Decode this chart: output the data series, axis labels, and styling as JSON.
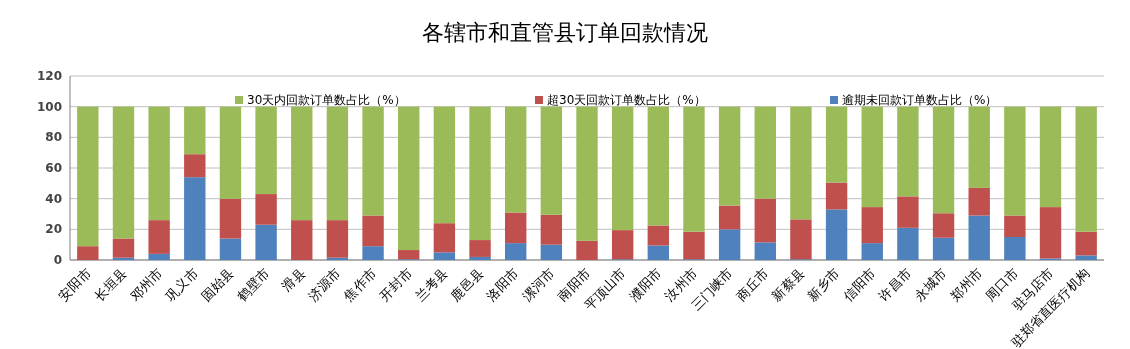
{
  "chart_data": {
    "type": "bar",
    "stacked": true,
    "title": "各辖市和直管县订单回款情况",
    "categories": [
      "安阳市",
      "长垣县",
      "邓州市",
      "巩义市",
      "固始县",
      "鹤壁市",
      "滑县",
      "济源市",
      "焦作市",
      "开封市",
      "兰考县",
      "鹿邑县",
      "洛阳市",
      "漯河市",
      "南阳市",
      "平顶山市",
      "濮阳市",
      "汝州市",
      "三门峡市",
      "商丘市",
      "新蔡县",
      "新乡市",
      "信阳市",
      "许昌市",
      "永城市",
      "郑州市",
      "周口市",
      "驻马店市",
      "驻郑省直医疗机构"
    ],
    "series": [
      {
        "name": "逾期未回款订单数占比（%）",
        "color": "#4f81bd",
        "values": [
          0,
          1.5,
          4,
          54,
          14,
          23,
          0,
          1.5,
          9,
          0.5,
          5,
          2,
          11,
          10,
          0,
          0.5,
          9.5,
          0.5,
          20,
          11.5,
          0.5,
          33,
          11,
          21,
          14.5,
          29,
          15,
          1,
          3
        ]
      },
      {
        "name": "超30天回款订单数占比（%）",
        "color": "#c0504d",
        "values": [
          9,
          12.5,
          22,
          15,
          26,
          20,
          26,
          24.5,
          20,
          6,
          19,
          11,
          20,
          19.5,
          12.5,
          19,
          13,
          18,
          15.5,
          28.5,
          26,
          17.5,
          23.5,
          20.5,
          16,
          18,
          14,
          33.5,
          15.5
        ]
      },
      {
        "name": "30天内回款订单数占比（%）",
        "color": "#9bbb59",
        "values": [
          91,
          86,
          74,
          31,
          60,
          57,
          74,
          74,
          71,
          93.5,
          76,
          87,
          69,
          70.5,
          87.5,
          80.5,
          77.5,
          81.5,
          64.5,
          60,
          73.5,
          49.5,
          65.5,
          58.5,
          69.5,
          53,
          71,
          65.5,
          81.5
        ]
      }
    ],
    "ylim": [
      0,
      120
    ],
    "yticks": [
      0,
      20,
      40,
      60,
      80,
      100,
      120
    ],
    "grid": "y",
    "legend": "top"
  }
}
